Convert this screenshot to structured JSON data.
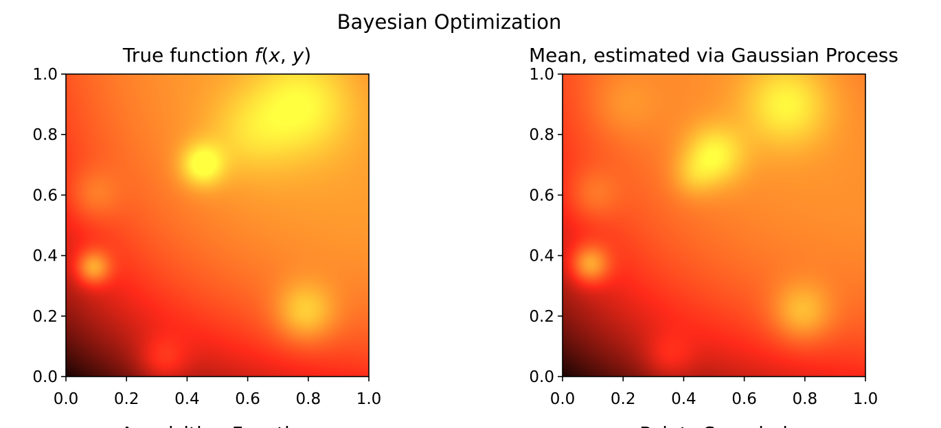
{
  "figure": {
    "suptitle": "Bayesian Optimization"
  },
  "chart_data": [
    {
      "type": "heatmap",
      "title": "True function f(x, y)",
      "title_parts": {
        "prefix": "True function ",
        "fn": "f",
        "open": "(",
        "var1": "x",
        "sep": ", ",
        "var2": "y",
        "close": ")"
      },
      "xlabel": "Acquisition Function",
      "xlim": [
        0,
        1
      ],
      "ylim": [
        0,
        1
      ],
      "xticks": [
        "0.0",
        "0.2",
        "0.4",
        "0.6",
        "0.8",
        "1.0"
      ],
      "yticks": [
        "0.0",
        "0.2",
        "0.4",
        "0.6",
        "0.8",
        "1.0"
      ],
      "colormap": "hot",
      "colors": [
        "#000000",
        "#ff2a1a",
        "#ffff40"
      ],
      "grid": false,
      "base": {
        "origin": 0.05,
        "gain_x": 0.55,
        "gain_y": 0.62,
        "slope_x": 1.8,
        "slope_y": 2.2
      },
      "bumps": [
        {
          "x": 0.45,
          "y": 0.7,
          "amp": 0.3,
          "sigma": 0.05
        },
        {
          "x": 0.6,
          "y": 0.8,
          "amp": 0.12,
          "sigma": 0.1
        },
        {
          "x": 0.78,
          "y": 0.9,
          "amp": 0.22,
          "sigma": 0.12
        },
        {
          "x": 0.09,
          "y": 0.6,
          "amp": 0.12,
          "sigma": 0.06
        },
        {
          "x": 0.09,
          "y": 0.36,
          "amp": 0.34,
          "sigma": 0.04
        },
        {
          "x": 0.79,
          "y": 0.21,
          "amp": 0.24,
          "sigma": 0.07
        },
        {
          "x": 0.32,
          "y": 0.05,
          "amp": 0.17,
          "sigma": 0.06
        }
      ]
    },
    {
      "type": "heatmap",
      "title": "Mean, estimated via Gaussian Process",
      "xlabel": "Points Sampled",
      "xlim": [
        0,
        1
      ],
      "ylim": [
        0,
        1
      ],
      "xticks": [
        "0.0",
        "0.2",
        "0.4",
        "0.6",
        "0.8",
        "1.0"
      ],
      "yticks": [
        "0.0",
        "0.2",
        "0.4",
        "0.6",
        "0.8",
        "1.0"
      ],
      "colormap": "hot",
      "colors": [
        "#000000",
        "#ff2a1a",
        "#ffff40"
      ],
      "grid": false,
      "base": {
        "origin": 0.05,
        "gain_x": 0.53,
        "gain_y": 0.6,
        "slope_x": 1.8,
        "slope_y": 2.2
      },
      "bumps": [
        {
          "x": 0.5,
          "y": 0.73,
          "amp": 0.26,
          "sigma": 0.07
        },
        {
          "x": 0.43,
          "y": 0.66,
          "amp": 0.1,
          "sigma": 0.05
        },
        {
          "x": 0.74,
          "y": 0.9,
          "amp": 0.24,
          "sigma": 0.1
        },
        {
          "x": 0.2,
          "y": 0.9,
          "amp": 0.08,
          "sigma": 0.08
        },
        {
          "x": 0.1,
          "y": 0.6,
          "amp": 0.12,
          "sigma": 0.06
        },
        {
          "x": 0.09,
          "y": 0.37,
          "amp": 0.34,
          "sigma": 0.045
        },
        {
          "x": 0.79,
          "y": 0.21,
          "amp": 0.22,
          "sigma": 0.07
        },
        {
          "x": 0.35,
          "y": 0.06,
          "amp": 0.13,
          "sigma": 0.06
        }
      ]
    }
  ]
}
